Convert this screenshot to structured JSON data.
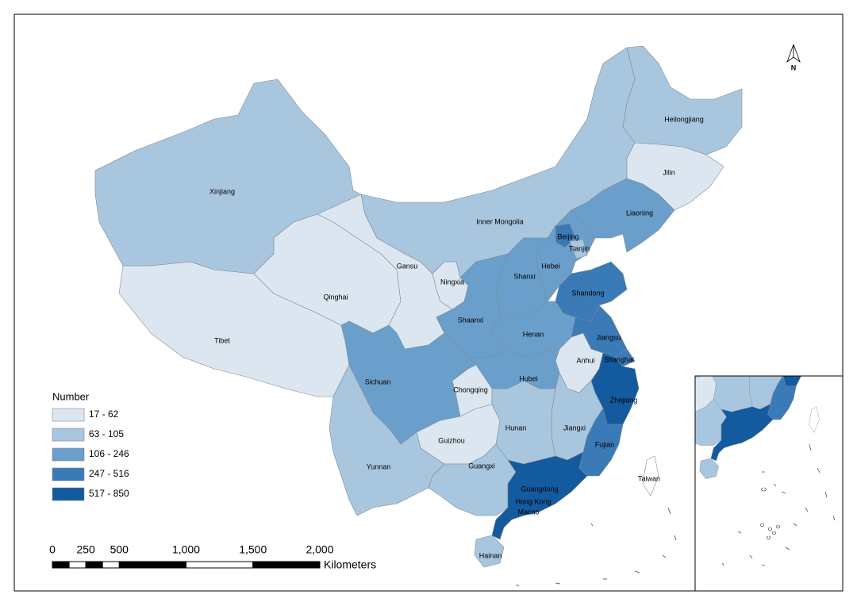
{
  "map": {
    "north_arrow": "N",
    "provinces": [
      {
        "name": "Tibet",
        "color": "#dbe6f1"
      },
      {
        "name": "Xinjiang",
        "color": "#a9c6df"
      },
      {
        "name": "Qinghai",
        "color": "#dbe6f1"
      },
      {
        "name": "Gansu",
        "color": "#dbe6f1"
      },
      {
        "name": "Inner Mongolia",
        "color": "#a9c6df"
      },
      {
        "name": "Heilongjiang",
        "color": "#a9c6df"
      },
      {
        "name": "Jilin",
        "color": "#dbe6f1"
      },
      {
        "name": "Liaoning",
        "color": "#6a9fcb"
      },
      {
        "name": "Hebei",
        "color": "#6a9fcb"
      },
      {
        "name": "Beijing",
        "color": "#3a7ab7"
      },
      {
        "name": "Tianjin",
        "color": "#a9c6df"
      },
      {
        "name": "Shanxi",
        "color": "#6a9fcb"
      },
      {
        "name": "Shaanxi",
        "color": "#6a9fcb"
      },
      {
        "name": "Ningxia",
        "color": "#dbe6f1"
      },
      {
        "name": "Shandong",
        "color": "#3a7ab7"
      },
      {
        "name": "Henan",
        "color": "#6a9fcb"
      },
      {
        "name": "Jiangsu",
        "color": "#3a7ab7"
      },
      {
        "name": "Shanghai",
        "color": "#3a7ab7"
      },
      {
        "name": "Anhui",
        "color": "#dbe6f1"
      },
      {
        "name": "Hubei",
        "color": "#6a9fcb"
      },
      {
        "name": "Sichuan",
        "color": "#6a9fcb"
      },
      {
        "name": "Chongqing",
        "color": "#dbe6f1"
      },
      {
        "name": "Zhejiang",
        "color": "#135a9e"
      },
      {
        "name": "Jiangxi",
        "color": "#a9c6df"
      },
      {
        "name": "Fujian",
        "color": "#3a7ab7"
      },
      {
        "name": "Hunan",
        "color": "#a9c6df"
      },
      {
        "name": "Guizhou",
        "color": "#dbe6f1"
      },
      {
        "name": "Guangxi",
        "color": "#a9c6df"
      },
      {
        "name": "Guangdong",
        "color": "#135a9e"
      },
      {
        "name": "Yunnan",
        "color": "#a9c6df"
      },
      {
        "name": "Hainan",
        "color": "#a9c6df"
      },
      {
        "name": "Taiwan",
        "color": "#ffffff"
      }
    ],
    "other_labels": [
      "Hong Kong",
      "Macao"
    ],
    "legend": {
      "title": "Number",
      "items": [
        {
          "label": "17 - 62",
          "color": "#dbe6f1"
        },
        {
          "label": "63 - 105",
          "color": "#a9c6df"
        },
        {
          "label": "106 - 246",
          "color": "#6a9fcb"
        },
        {
          "label": "247 - 516",
          "color": "#3a7ab7"
        },
        {
          "label": "517 - 850",
          "color": "#135a9e"
        }
      ]
    },
    "scale_bar": {
      "ticks": [
        0,
        250,
        500,
        {
          "value": 1000,
          "label": "1,000"
        },
        {
          "value": 1500,
          "label": "1,500"
        },
        {
          "value": 2000,
          "label": "2,000"
        }
      ],
      "unit": "Kilometers"
    }
  }
}
